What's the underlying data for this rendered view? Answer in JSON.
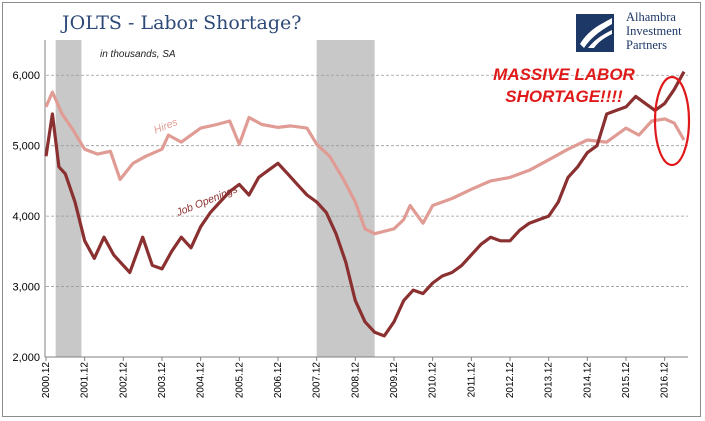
{
  "title": "JOLTS - Labor Shortage?",
  "subtitle": "in thousands, SA",
  "logo": {
    "icon": "alhambra-swoosh-logo",
    "lines": [
      "Alhambra",
      "Investment",
      "Partners"
    ]
  },
  "annotation": {
    "lines": [
      "MASSIVE LABOR",
      "SHORTAGE!!!!"
    ],
    "color": "#e01a1a"
  },
  "chart_data": {
    "type": "line",
    "title": "JOLTS - Labor Shortage?",
    "ylim": [
      2000,
      6500
    ],
    "yticks": [
      "2,000",
      "3,000",
      "4,000",
      "5,000",
      "6,000"
    ],
    "xticks": [
      "2000.12",
      "2001.12",
      "2002.12",
      "2003.12",
      "2004.12",
      "2005.12",
      "2006.12",
      "2007.12",
      "2008.12",
      "2009.12",
      "2010.12",
      "2011.12",
      "2012.12",
      "2013.12",
      "2014.12",
      "2015.12",
      "2016.12"
    ],
    "grid": "horizontal dashed",
    "recessions": [
      {
        "start": "2001.03",
        "end": "2001.11"
      },
      {
        "start": "2007.12",
        "end": "2009.06"
      }
    ],
    "series": [
      {
        "name": "Hires",
        "color": "#e09c94",
        "points": [
          [
            "2000.12",
            5550
          ],
          [
            "2001.02",
            5760
          ],
          [
            "2001.05",
            5450
          ],
          [
            "2001.08",
            5250
          ],
          [
            "2001.12",
            4950
          ],
          [
            "2002.04",
            4880
          ],
          [
            "2002.08",
            4920
          ],
          [
            "2002.11",
            4520
          ],
          [
            "2003.03",
            4750
          ],
          [
            "2003.07",
            4850
          ],
          [
            "2003.12",
            4950
          ],
          [
            "2004.02",
            5150
          ],
          [
            "2004.06",
            5050
          ],
          [
            "2004.12",
            5250
          ],
          [
            "2005.05",
            5300
          ],
          [
            "2005.09",
            5350
          ],
          [
            "2005.12",
            5020
          ],
          [
            "2006.03",
            5400
          ],
          [
            "2006.07",
            5300
          ],
          [
            "2006.12",
            5260
          ],
          [
            "2007.04",
            5280
          ],
          [
            "2007.09",
            5250
          ],
          [
            "2007.12",
            5020
          ],
          [
            "2008.04",
            4850
          ],
          [
            "2008.08",
            4550
          ],
          [
            "2008.12",
            4200
          ],
          [
            "2009.03",
            3820
          ],
          [
            "2009.06",
            3750
          ],
          [
            "2009.12",
            3820
          ],
          [
            "2010.03",
            3950
          ],
          [
            "2010.05",
            4150
          ],
          [
            "2010.09",
            3900
          ],
          [
            "2010.12",
            4150
          ],
          [
            "2011.06",
            4250
          ],
          [
            "2011.12",
            4380
          ],
          [
            "2012.06",
            4500
          ],
          [
            "2012.12",
            4550
          ],
          [
            "2013.06",
            4650
          ],
          [
            "2013.12",
            4800
          ],
          [
            "2014.06",
            4950
          ],
          [
            "2014.12",
            5080
          ],
          [
            "2015.06",
            5050
          ],
          [
            "2015.12",
            5250
          ],
          [
            "2016.04",
            5150
          ],
          [
            "2016.08",
            5350
          ],
          [
            "2016.12",
            5380
          ],
          [
            "2017.03",
            5320
          ],
          [
            "2017.06",
            5080
          ]
        ]
      },
      {
        "name": "Job Openings",
        "color": "#8b3030",
        "points": [
          [
            "2000.12",
            4850
          ],
          [
            "2001.02",
            5450
          ],
          [
            "2001.04",
            4700
          ],
          [
            "2001.06",
            4600
          ],
          [
            "2001.09",
            4200
          ],
          [
            "2001.12",
            3650
          ],
          [
            "2002.03",
            3400
          ],
          [
            "2002.06",
            3700
          ],
          [
            "2002.09",
            3450
          ],
          [
            "2002.12",
            3300
          ],
          [
            "2003.02",
            3200
          ],
          [
            "2003.04",
            3450
          ],
          [
            "2003.06",
            3700
          ],
          [
            "2003.09",
            3300
          ],
          [
            "2003.12",
            3250
          ],
          [
            "2004.03",
            3500
          ],
          [
            "2004.06",
            3700
          ],
          [
            "2004.09",
            3550
          ],
          [
            "2004.12",
            3850
          ],
          [
            "2005.03",
            4050
          ],
          [
            "2005.06",
            4200
          ],
          [
            "2005.09",
            4350
          ],
          [
            "2005.12",
            4450
          ],
          [
            "2006.03",
            4300
          ],
          [
            "2006.06",
            4550
          ],
          [
            "2006.09",
            4650
          ],
          [
            "2006.12",
            4750
          ],
          [
            "2007.03",
            4600
          ],
          [
            "2007.06",
            4450
          ],
          [
            "2007.09",
            4300
          ],
          [
            "2007.12",
            4200
          ],
          [
            "2008.03",
            4050
          ],
          [
            "2008.06",
            3750
          ],
          [
            "2008.09",
            3350
          ],
          [
            "2008.12",
            2800
          ],
          [
            "2009.03",
            2500
          ],
          [
            "2009.06",
            2350
          ],
          [
            "2009.09",
            2300
          ],
          [
            "2009.12",
            2500
          ],
          [
            "2010.03",
            2800
          ],
          [
            "2010.06",
            2950
          ],
          [
            "2010.09",
            2900
          ],
          [
            "2010.12",
            3050
          ],
          [
            "2011.03",
            3150
          ],
          [
            "2011.06",
            3200
          ],
          [
            "2011.09",
            3300
          ],
          [
            "2011.12",
            3450
          ],
          [
            "2012.03",
            3600
          ],
          [
            "2012.06",
            3700
          ],
          [
            "2012.09",
            3650
          ],
          [
            "2012.12",
            3650
          ],
          [
            "2013.03",
            3800
          ],
          [
            "2013.06",
            3900
          ],
          [
            "2013.09",
            3950
          ],
          [
            "2013.12",
            4000
          ],
          [
            "2014.03",
            4200
          ],
          [
            "2014.06",
            4550
          ],
          [
            "2014.09",
            4700
          ],
          [
            "2014.12",
            4900
          ],
          [
            "2015.03",
            5000
          ],
          [
            "2015.06",
            5450
          ],
          [
            "2015.09",
            5500
          ],
          [
            "2015.12",
            5550
          ],
          [
            "2016.03",
            5700
          ],
          [
            "2016.06",
            5600
          ],
          [
            "2016.09",
            5500
          ],
          [
            "2016.12",
            5600
          ],
          [
            "2017.03",
            5800
          ],
          [
            "2017.06",
            6050
          ]
        ]
      }
    ],
    "series_labels": [
      {
        "series": "Hires",
        "text": "Hires",
        "at": [
          "2003.10",
          5170
        ]
      },
      {
        "series": "Job Openings",
        "text": "Job Openings",
        "at": [
          "2004.05",
          4000
        ]
      }
    ]
  }
}
